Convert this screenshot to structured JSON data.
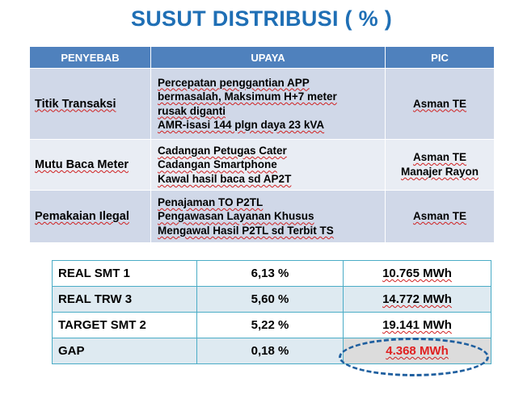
{
  "title": "SUSUT DISTRIBUSI ( % )",
  "upper_table": {
    "headers": [
      "PENYEBAB",
      "UPAYA",
      "PIC"
    ],
    "rows": [
      {
        "cause": "Titik Transaksi",
        "actions": [
          "Percepatan penggantian APP",
          "bermasalah, Maksimum H+7 meter",
          "rusak diganti",
          "AMR-isasi 144 plgn daya 23 kVA"
        ],
        "pic": [
          "Asman TE"
        ]
      },
      {
        "cause": "Mutu Baca Meter",
        "actions": [
          "Cadangan Petugas Cater",
          "Cadangan Smartphone",
          "Kawal hasil baca sd AP2T"
        ],
        "pic": [
          "Asman TE",
          "Manajer Rayon"
        ]
      },
      {
        "cause": "Pemakaian Ilegal",
        "actions": [
          "Penajaman TO P2TL",
          "Pengawasan Layanan Khusus",
          "Mengawal Hasil P2TL sd Terbit TS"
        ],
        "pic": [
          "Asman TE"
        ]
      }
    ]
  },
  "lower_table": {
    "rows": [
      {
        "label": "REAL SMT 1",
        "percent": "6,13 %",
        "value": "10.765 MWh"
      },
      {
        "label": "REAL TRW 3",
        "percent": "5,60 %",
        "value": "14.772 MWh"
      },
      {
        "label": "TARGET SMT 2",
        "percent": "5,22 %",
        "value": "19.141 MWh"
      },
      {
        "label": "GAP",
        "percent": "0,18 %",
        "value": "4.368 MWh"
      }
    ]
  },
  "colors": {
    "title": "#1f6fb5",
    "header_bg": "#4f81bd",
    "row_dark": "#d0d8e8",
    "row_light": "#e9edf4",
    "lower_border": "#4aacc6",
    "gap_value": "#e02020",
    "ellipse": "#1f5f9f"
  }
}
